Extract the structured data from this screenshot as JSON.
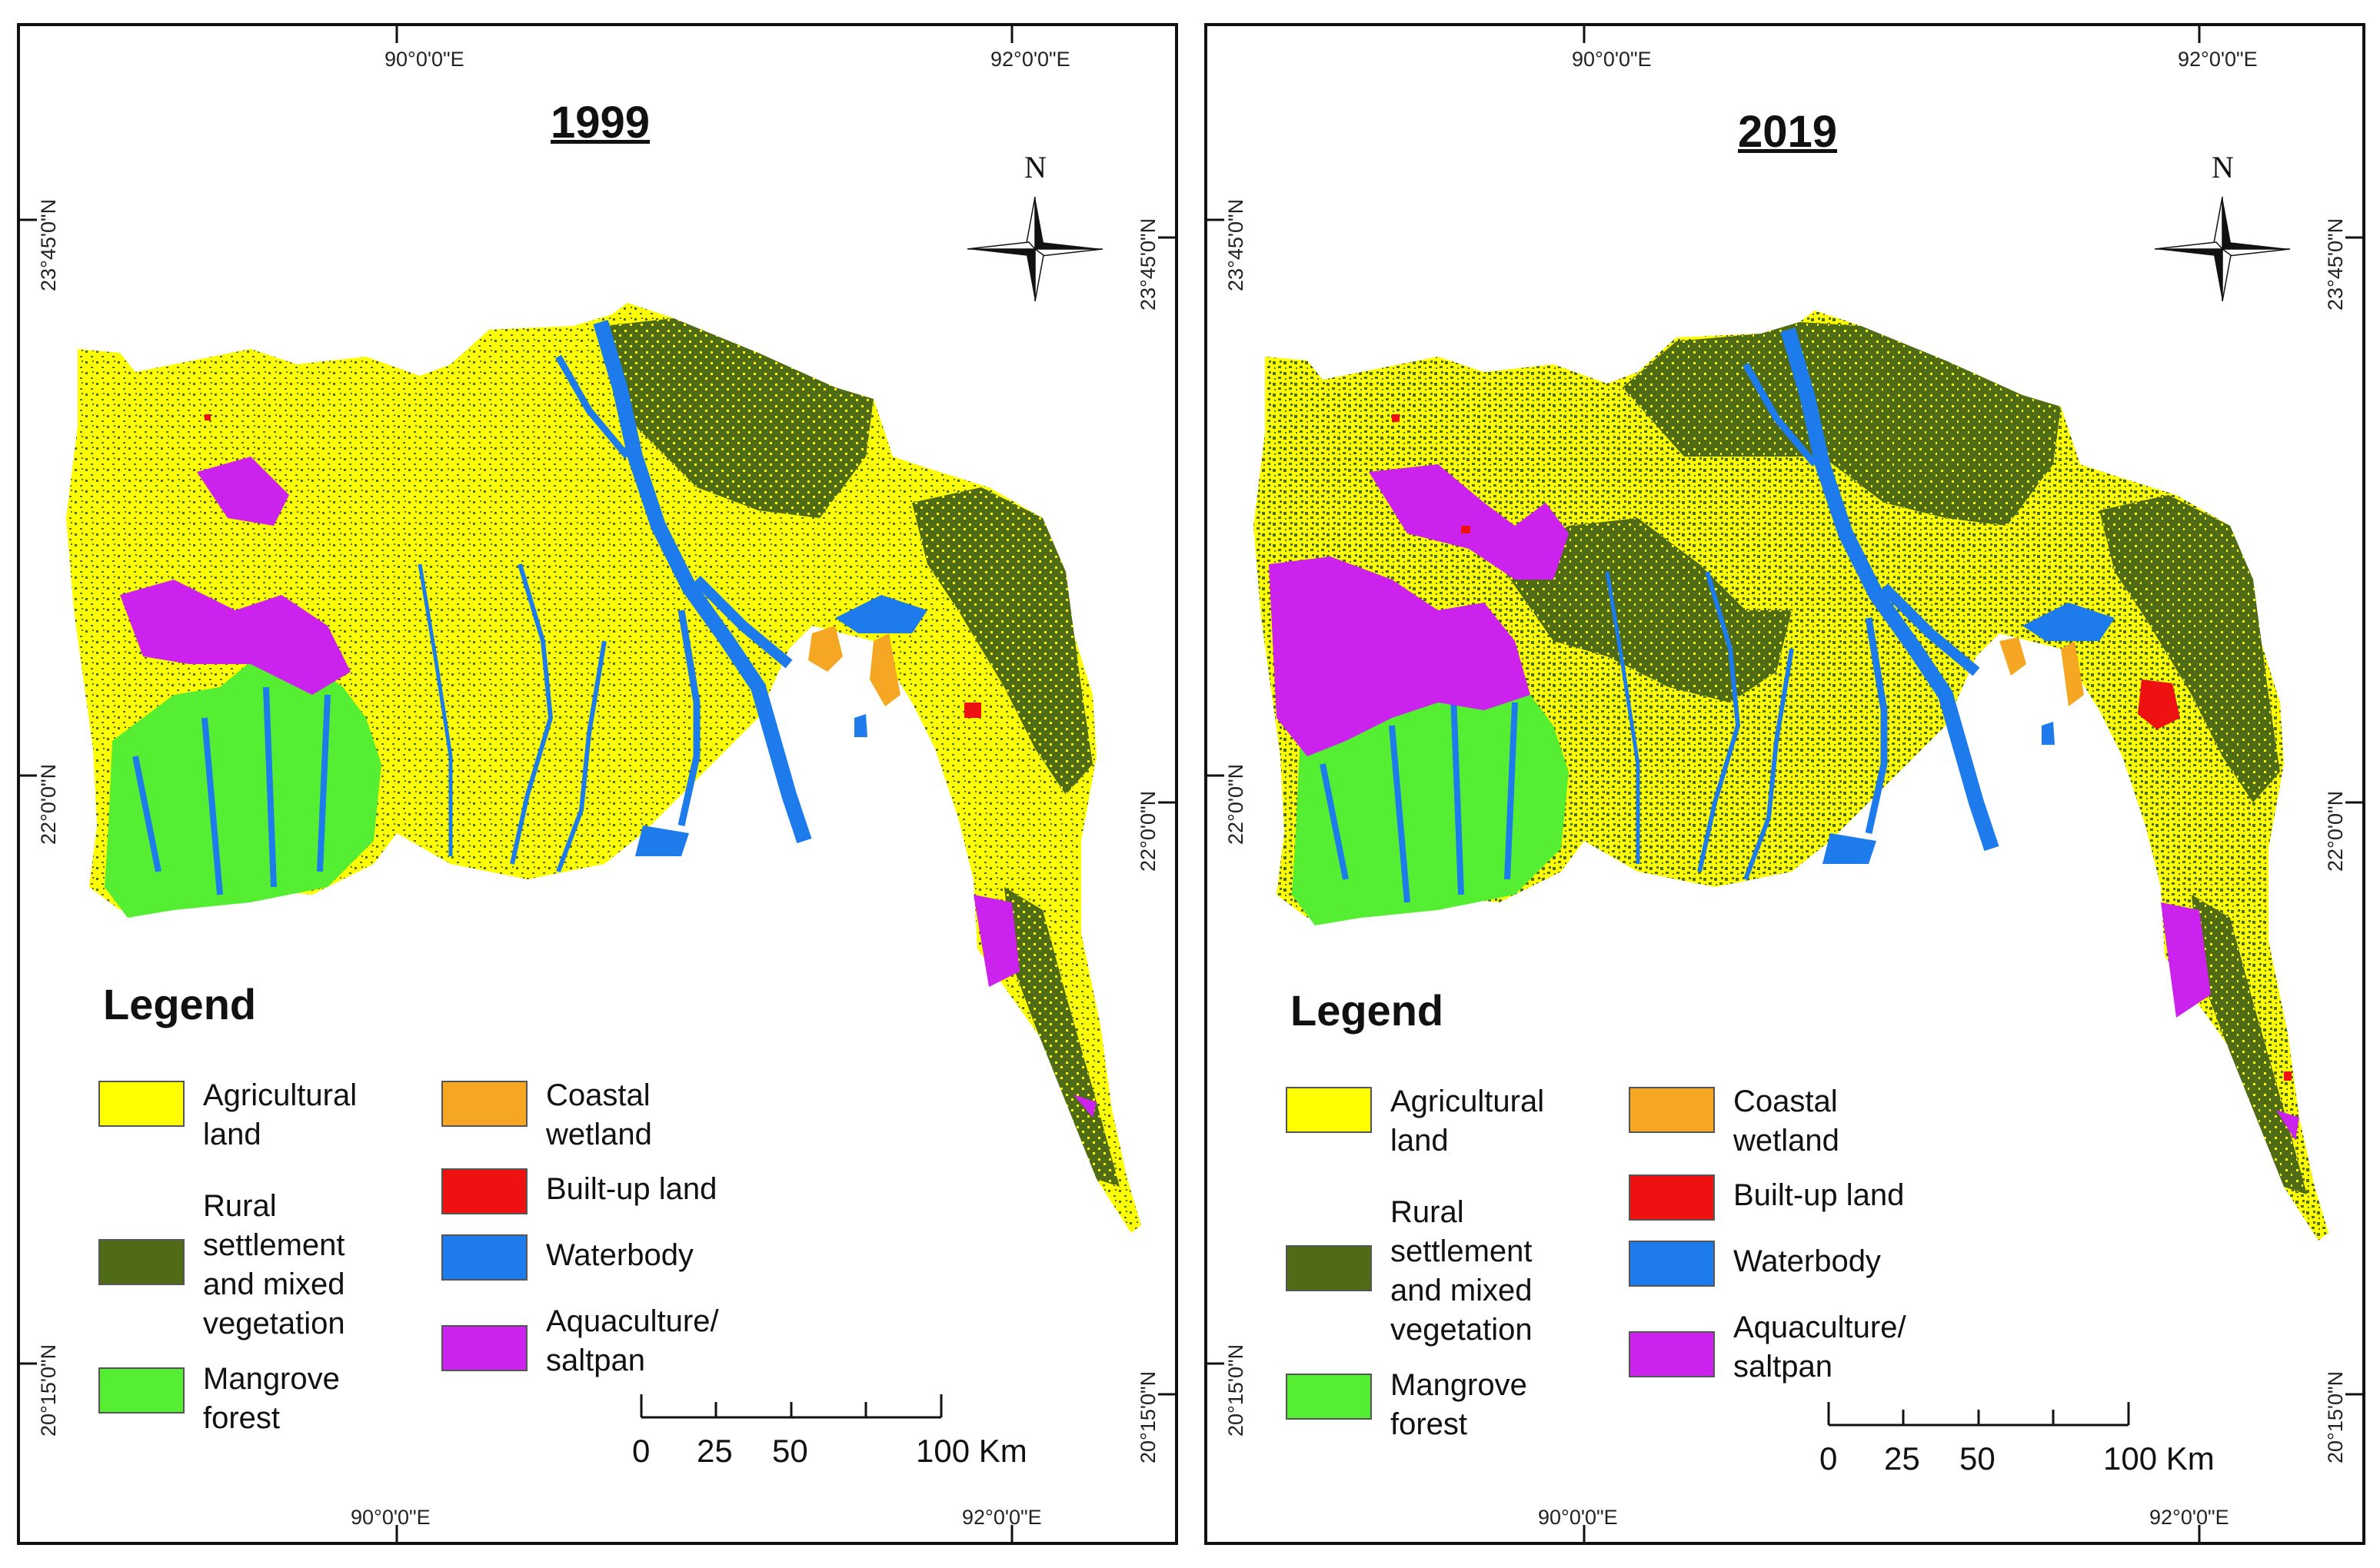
{
  "colors": {
    "agricultural": "#FFFF00",
    "rural": "#4F6B16",
    "mangrove": "#55EE33",
    "coastal": "#F5A623",
    "builtup": "#EE1111",
    "water": "#1E7BEB",
    "aqua": "#CC22EE"
  },
  "grid": {
    "lon_left": "90°0'0\"E",
    "lon_right": "92°0'0\"E",
    "lat_top": "23°45'0\"N",
    "lat_mid": "22°0'0\"N",
    "lat_bottom": "20°15'0\"N"
  },
  "north": "N",
  "legend": {
    "title": "Legend",
    "items": [
      {
        "key": "agricultural",
        "label": "Agricultural land"
      },
      {
        "key": "rural",
        "label": "Rural settlement and mixed vegetation"
      },
      {
        "key": "mangrove",
        "label": "Mangrove forest"
      },
      {
        "key": "coastal",
        "label": "Coastal wetland"
      },
      {
        "key": "builtup",
        "label": "Built-up land"
      },
      {
        "key": "water",
        "label": "Waterbody"
      },
      {
        "key": "aqua",
        "label": "Aquaculture/ saltpan"
      }
    ]
  },
  "scale": {
    "labels": [
      "0",
      "25",
      "50",
      "100 Km"
    ]
  },
  "maps": [
    {
      "year": "1999"
    },
    {
      "year": "2019"
    }
  ]
}
